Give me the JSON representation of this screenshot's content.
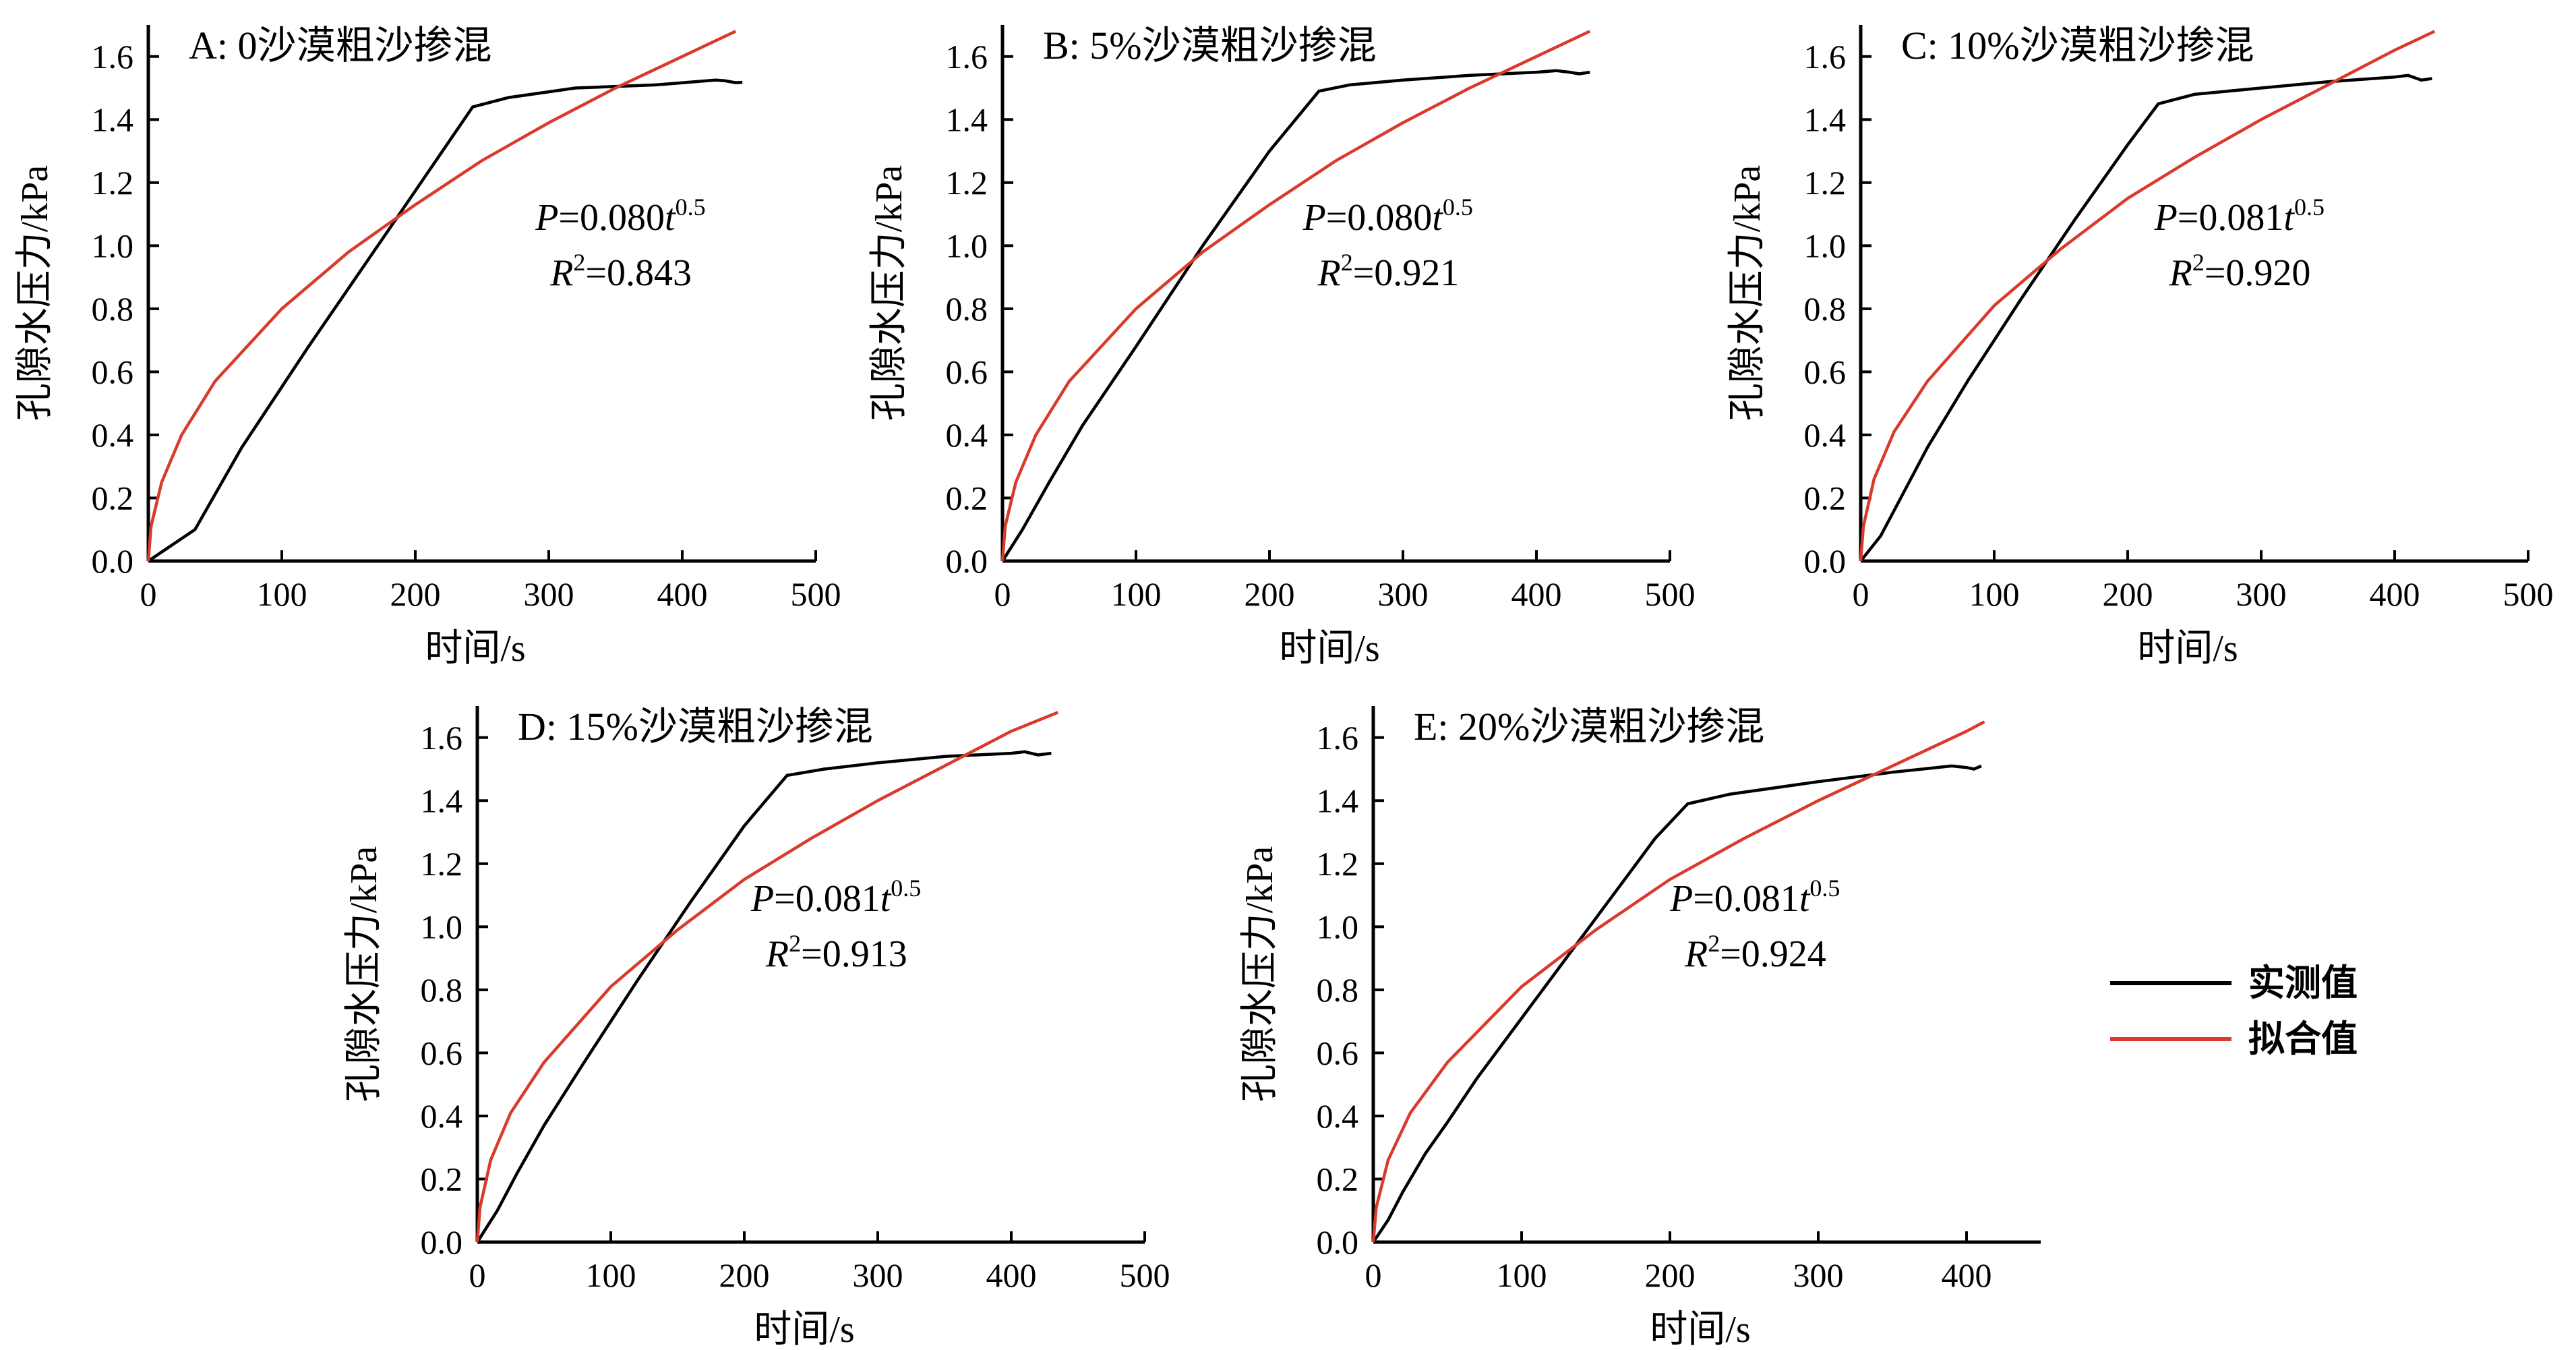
{
  "legend": {
    "placement": "right",
    "items": [
      {
        "label": "实测值",
        "color": "#000000"
      },
      {
        "label": "拟合值",
        "color": "#d93a2b"
      }
    ]
  },
  "colors": {
    "measured": "#000000",
    "fit": "#d93a2b",
    "axis": "#000000"
  },
  "chart_data": [
    {
      "type": "line",
      "title": "A: 0沙漠粗沙掺混",
      "xlabel": "时间/s",
      "ylabel": "孔隙水压力/kPa",
      "xlim": [
        0,
        500
      ],
      "ylim": [
        0,
        1.7
      ],
      "xticks": [
        0,
        100,
        200,
        300,
        400,
        500
      ],
      "yticks": [
        0.0,
        0.2,
        0.4,
        0.6,
        0.8,
        1.0,
        1.2,
        1.4,
        1.6
      ],
      "annotation": {
        "p_label": "P",
        "p_text": "=0.080",
        "t_label": "t",
        "exponent": "0.5",
        "r_label": "R",
        "r_sup": "2",
        "r_text": "=0.843",
        "x": 290,
        "y": 1.05
      },
      "series": [
        {
          "name": "实测值",
          "x": [
            0,
            35,
            70,
            120,
            180,
            243,
            270,
            320,
            380,
            425,
            432,
            440,
            445
          ],
          "y": [
            0,
            0.1,
            0.36,
            0.68,
            1.05,
            1.44,
            1.47,
            1.5,
            1.51,
            1.525,
            1.523,
            1.517,
            1.518
          ]
        },
        {
          "name": "拟合值",
          "x": [
            0,
            2,
            10,
            25,
            50,
            100,
            150,
            200,
            250,
            300,
            350,
            400,
            440
          ],
          "y": [
            0,
            0.11,
            0.25,
            0.4,
            0.57,
            0.8,
            0.98,
            1.13,
            1.27,
            1.39,
            1.5,
            1.6,
            1.68
          ]
        }
      ]
    },
    {
      "type": "line",
      "title": "B: 5%沙漠粗沙掺混",
      "xlabel": "时间/s",
      "ylabel": "孔隙水压力/kPa",
      "xlim": [
        0,
        500
      ],
      "ylim": [
        0,
        1.7
      ],
      "xticks": [
        0,
        100,
        200,
        300,
        400,
        500
      ],
      "yticks": [
        0.0,
        0.2,
        0.4,
        0.6,
        0.8,
        1.0,
        1.2,
        1.4,
        1.6
      ],
      "annotation": {
        "p_label": "P",
        "p_text": "=0.080",
        "t_label": "t",
        "exponent": "0.5",
        "r_label": "R",
        "r_sup": "2",
        "r_text": "=0.921",
        "x": 225,
        "y": 1.05
      },
      "series": [
        {
          "name": "实测值",
          "x": [
            0,
            15,
            35,
            60,
            100,
            150,
            200,
            237,
            260,
            300,
            350,
            400,
            415,
            425,
            432,
            440
          ],
          "y": [
            0,
            0.1,
            0.25,
            0.43,
            0.68,
            1.0,
            1.3,
            1.49,
            1.51,
            1.525,
            1.54,
            1.55,
            1.555,
            1.55,
            1.545,
            1.55
          ]
        },
        {
          "name": "拟合值",
          "x": [
            0,
            2,
            10,
            25,
            50,
            100,
            150,
            200,
            250,
            300,
            350,
            400,
            440
          ],
          "y": [
            0,
            0.11,
            0.25,
            0.4,
            0.57,
            0.8,
            0.98,
            1.13,
            1.27,
            1.39,
            1.5,
            1.6,
            1.68
          ]
        }
      ]
    },
    {
      "type": "line",
      "title": "C: 10%沙漠粗沙掺混",
      "xlabel": "时间/s",
      "ylabel": "孔隙水压力/kPa",
      "xlim": [
        0,
        500
      ],
      "ylim": [
        0,
        1.7
      ],
      "xticks": [
        0,
        100,
        200,
        300,
        400,
        500
      ],
      "yticks": [
        0.0,
        0.2,
        0.4,
        0.6,
        0.8,
        1.0,
        1.2,
        1.4,
        1.6
      ],
      "annotation": {
        "p_label": "P",
        "p_text": "=0.081",
        "t_label": "t",
        "exponent": "0.5",
        "r_label": "R",
        "r_sup": "2",
        "r_text": "=0.920",
        "x": 220,
        "y": 1.05
      },
      "series": [
        {
          "name": "实测值",
          "x": [
            0,
            15,
            30,
            50,
            80,
            120,
            160,
            200,
            223,
            250,
            300,
            350,
            400,
            410,
            420,
            428
          ],
          "y": [
            0,
            0.08,
            0.2,
            0.36,
            0.57,
            0.83,
            1.08,
            1.32,
            1.45,
            1.48,
            1.5,
            1.52,
            1.535,
            1.54,
            1.525,
            1.53
          ]
        },
        {
          "name": "拟合值",
          "x": [
            0,
            2,
            10,
            25,
            50,
            100,
            150,
            200,
            250,
            300,
            350,
            400,
            430
          ],
          "y": [
            0,
            0.11,
            0.26,
            0.41,
            0.57,
            0.81,
            0.99,
            1.15,
            1.28,
            1.4,
            1.51,
            1.62,
            1.68
          ]
        }
      ]
    },
    {
      "type": "line",
      "title": "D: 15%沙漠粗沙掺混",
      "xlabel": "时间/s",
      "ylabel": "孔隙水压力/kPa",
      "xlim": [
        0,
        500
      ],
      "ylim": [
        0,
        1.7
      ],
      "xticks": [
        0,
        100,
        200,
        300,
        400,
        500
      ],
      "yticks": [
        0.0,
        0.2,
        0.4,
        0.6,
        0.8,
        1.0,
        1.2,
        1.4,
        1.6
      ],
      "annotation": {
        "p_label": "P",
        "p_text": "=0.081",
        "t_label": "t",
        "exponent": "0.5",
        "r_label": "R",
        "r_sup": "2",
        "r_text": "=0.913",
        "x": 205,
        "y": 1.05
      },
      "series": [
        {
          "name": "实测值",
          "x": [
            0,
            15,
            30,
            50,
            80,
            120,
            160,
            200,
            232,
            260,
            300,
            350,
            400,
            410,
            420,
            430
          ],
          "y": [
            0,
            0.1,
            0.22,
            0.37,
            0.57,
            0.83,
            1.08,
            1.32,
            1.48,
            1.5,
            1.52,
            1.54,
            1.55,
            1.555,
            1.545,
            1.55
          ]
        },
        {
          "name": "拟合值",
          "x": [
            0,
            2,
            10,
            25,
            50,
            100,
            150,
            200,
            250,
            300,
            350,
            400,
            435
          ],
          "y": [
            0,
            0.11,
            0.26,
            0.41,
            0.57,
            0.81,
            0.99,
            1.15,
            1.28,
            1.4,
            1.51,
            1.62,
            1.68
          ]
        }
      ]
    },
    {
      "type": "line",
      "title": "E: 20%沙漠粗沙掺混",
      "xlabel": "时间/s",
      "ylabel": "孔隙水压力/kPa",
      "xlim": [
        0,
        450
      ],
      "ylim": [
        0,
        1.7
      ],
      "xticks": [
        0,
        100,
        200,
        300,
        400
      ],
      "yticks": [
        0.0,
        0.2,
        0.4,
        0.6,
        0.8,
        1.0,
        1.2,
        1.4,
        1.6
      ],
      "annotation": {
        "p_label": "P",
        "p_text": "=0.081",
        "t_label": "t",
        "exponent": "0.5",
        "r_label": "R",
        "r_sup": "2",
        "r_text": "=0.924",
        "x": 200,
        "y": 1.05
      },
      "series": [
        {
          "name": "实测值",
          "x": [
            0,
            10,
            20,
            35,
            50,
            70,
            100,
            130,
            160,
            190,
            212,
            240,
            300,
            350,
            390,
            400,
            405,
            410
          ],
          "y": [
            0,
            0.07,
            0.16,
            0.28,
            0.38,
            0.52,
            0.71,
            0.9,
            1.09,
            1.28,
            1.39,
            1.42,
            1.46,
            1.49,
            1.51,
            1.505,
            1.5,
            1.51
          ]
        },
        {
          "name": "拟合值",
          "x": [
            0,
            2,
            10,
            25,
            50,
            100,
            150,
            200,
            250,
            300,
            350,
            400,
            412
          ],
          "y": [
            0,
            0.11,
            0.26,
            0.41,
            0.57,
            0.81,
            0.99,
            1.15,
            1.28,
            1.4,
            1.51,
            1.62,
            1.65
          ]
        }
      ]
    }
  ]
}
